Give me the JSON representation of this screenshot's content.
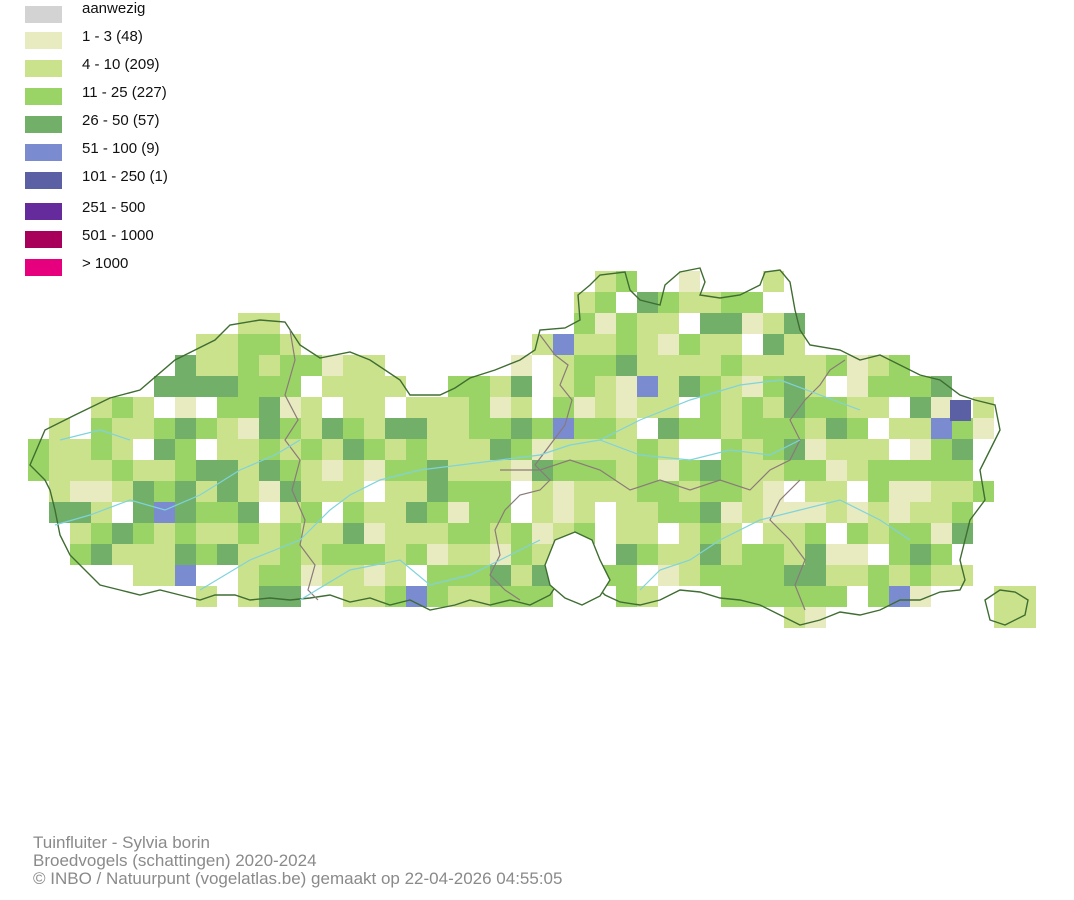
{
  "legend": {
    "items": [
      {
        "label": "aanwezig",
        "color": "#d3d3d3"
      },
      {
        "label": "1 - 3 (48)",
        "color": "#e8eac0"
      },
      {
        "label": "4 - 10 (209)",
        "color": "#cbe28c"
      },
      {
        "label": "11 - 25 (227)",
        "color": "#9bd466"
      },
      {
        "label": "26 - 50 (57)",
        "color": "#72b06a"
      },
      {
        "label": "51 - 100 (9)",
        "color": "#7b8bd0"
      },
      {
        "label": "101 - 250 (1)",
        "color": "#5b5fa4"
      },
      {
        "label": "251 - 500",
        "color": "#652a9b"
      },
      {
        "label": "501 - 1000",
        "color": "#a8005a"
      },
      {
        "label": "> 1000",
        "color": "#e6007e"
      }
    ]
  },
  "map": {
    "region_outline_color": "#3f6d32",
    "province_border_color": "#8a7a7a",
    "river_color": "#7ed3dc"
  },
  "footer": {
    "species": "Tuinfluiter - Sylvia borin",
    "dataset": "Broedvogels (schattingen) 2020-2024",
    "credit": "© INBO / Natuurpunt (vogelatlas.be) gemaakt op 22-04-2026 04:55:05"
  }
}
